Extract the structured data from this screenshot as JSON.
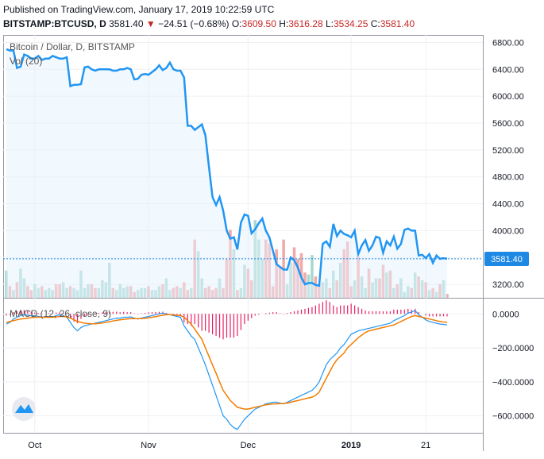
{
  "header": {
    "published": "Published on TradingView.com, January 17, 2019 10:22:59 UTC",
    "symbol": "BITSTAMP:BTCUSD, D",
    "last": "3581.40",
    "change": "−24.51 (−0.68%)",
    "o_label": "O:",
    "o_value": "3609.50",
    "h_label": "H:",
    "h_value": "3616.28",
    "l_label": "L:",
    "l_value": "3534.25",
    "c_label": "C:",
    "c_value": "3581.40",
    "colors": {
      "down": "#c62828",
      "text": "#131722"
    }
  },
  "price_pane": {
    "title": "Bitcoin / Dollar, D, BITSTAMP",
    "vol_label": "Vol (20)",
    "last_price_tag": "3581.40",
    "line_color": "#2196f3",
    "tag_color": "#1e88e5"
  },
  "macd_pane": {
    "title": "MACD (12, 26, close, 9)",
    "macd_color": "#2196f3",
    "signal_color": "#f57c00",
    "hist_color": "#e91e63"
  },
  "chart_data": [
    {
      "type": "line",
      "title": "Bitcoin / Dollar, D, BITSTAMP",
      "x_ticks": [
        "Oct",
        "Nov",
        "Dec",
        "2019",
        "21"
      ],
      "y_ticks": [
        "6800.00",
        "6400.00",
        "6000.00",
        "5600.00",
        "5200.00",
        "4800.00",
        "4400.00",
        "4000.00",
        "3600.00",
        "3200.00"
      ],
      "ylim": [
        3000,
        6900
      ],
      "grid": true,
      "series": [
        {
          "name": "",
          "values": [
            6700,
            6680,
            6680,
            6420,
            6440,
            6620,
            6600,
            6560,
            6560,
            6600,
            6540,
            6560,
            6560,
            6600,
            6580,
            6560,
            6560,
            6580,
            6150,
            6170,
            6170,
            6180,
            6430,
            6440,
            6400,
            6380,
            6400,
            6400,
            6400,
            6400,
            6380,
            6380,
            6400,
            6400,
            6420,
            6400,
            6250,
            6260,
            6320,
            6330,
            6320,
            6360,
            6400,
            6460,
            6390,
            6420,
            6500,
            6400,
            6380,
            6380,
            6280,
            5560,
            5560,
            5500,
            5540,
            5580,
            5420,
            4950,
            4500,
            4380,
            4500,
            4300,
            4000,
            3880,
            3900,
            3720,
            4120,
            4240,
            4220,
            3960,
            4020,
            4110,
            4180,
            4000,
            3900,
            3700,
            3500,
            3460,
            3420,
            3420,
            3600,
            3560,
            3450,
            3300,
            3200,
            3220,
            3220,
            3190,
            3180,
            3800,
            3840,
            3760,
            4100,
            3920,
            4000,
            3950,
            3930,
            3900,
            4000,
            3650,
            3780,
            3860,
            3700,
            3780,
            3910,
            3890,
            3670,
            3840,
            3780,
            3910,
            3730,
            3800,
            4010,
            4030,
            4000,
            4000,
            3630,
            3640,
            3590,
            3650,
            3520,
            3630,
            3580,
            3590,
            3581
          ]
        }
      ],
      "volume": [
        28,
        12,
        8,
        16,
        30,
        20,
        12,
        8,
        14,
        10,
        12,
        8,
        10,
        8,
        14,
        14,
        16,
        10,
        12,
        10,
        8,
        28,
        10,
        14,
        14,
        10,
        10,
        18,
        16,
        36,
        10,
        8,
        14,
        10,
        12,
        12,
        6,
        8,
        10,
        10,
        12,
        8,
        8,
        12,
        14,
        20,
        8,
        10,
        12,
        10,
        16,
        8,
        10,
        60,
        48,
        20,
        10,
        12,
        8,
        10,
        20,
        10,
        40,
        70,
        50,
        8,
        10,
        34,
        30,
        18,
        80,
        60,
        40,
        60,
        56,
        12,
        50,
        32,
        60,
        14,
        36,
        52,
        40,
        46,
        26,
        24,
        44,
        22,
        14,
        16,
        20,
        10,
        28,
        18,
        36,
        50,
        58,
        12,
        18,
        42,
        22,
        10,
        30,
        16,
        20,
        20,
        34,
        26,
        28,
        10,
        14,
        20,
        6,
        12,
        10,
        26,
        22,
        18,
        16,
        8,
        10,
        6,
        14,
        18,
        4
      ],
      "volume_max": 90
    },
    {
      "type": "line",
      "title": "MACD (12, 26, close, 9)",
      "x_ticks": [
        "Oct",
        "Nov",
        "Dec",
        "2019",
        "21"
      ],
      "y_ticks": [
        "0.0000",
        "−200.0000",
        "−400.0000",
        "−600.0000"
      ],
      "ylim": [
        -700,
        90
      ],
      "grid": true,
      "series": [
        {
          "name": "MACD",
          "values": [
            -60,
            -50,
            -30,
            -20,
            -10,
            -5,
            -8,
            -10,
            -12,
            -15,
            -18,
            -20,
            -15,
            -20,
            -10,
            -5,
            -10,
            -20,
            -50,
            -80,
            -100,
            -80,
            -70,
            -65,
            -60,
            -55,
            -50,
            -45,
            -40,
            -35,
            -30,
            -25,
            -25,
            -20,
            -20,
            -18,
            -25,
            -30,
            -25,
            -20,
            -15,
            -10,
            -5,
            0,
            5,
            0,
            -5,
            -10,
            -15,
            -20,
            -70,
            -100,
            -130,
            -150,
            -200,
            -250,
            -300,
            -360,
            -420,
            -480,
            -540,
            -600,
            -620,
            -650,
            -670,
            -680,
            -650,
            -620,
            -600,
            -580,
            -560,
            -550,
            -540,
            -530,
            -525,
            -520,
            -520,
            -525,
            -530,
            -520,
            -510,
            -500,
            -490,
            -480,
            -470,
            -460,
            -450,
            -430,
            -400,
            -350,
            -300,
            -270,
            -250,
            -230,
            -200,
            -180,
            -150,
            -120,
            -110,
            -100,
            -95,
            -90,
            -85,
            -80,
            -75,
            -70,
            -65,
            -60,
            -55,
            -40,
            -30,
            -20,
            -10,
            5,
            10,
            20,
            -5,
            -20,
            -35,
            -45,
            -50,
            -55,
            -60,
            -62,
            -65
          ]
        },
        {
          "name": "Signal",
          "values": [
            -50,
            -45,
            -40,
            -35,
            -30,
            -28,
            -25,
            -22,
            -20,
            -20,
            -20,
            -20,
            -20,
            -20,
            -18,
            -15,
            -15,
            -18,
            -25,
            -35,
            -45,
            -50,
            -55,
            -57,
            -58,
            -58,
            -56,
            -54,
            -50,
            -46,
            -42,
            -38,
            -35,
            -32,
            -30,
            -28,
            -28,
            -28,
            -28,
            -26,
            -24,
            -20,
            -16,
            -12,
            -8,
            -5,
            -5,
            -6,
            -8,
            -10,
            -20,
            -40,
            -60,
            -90,
            -120,
            -150,
            -200,
            -250,
            -300,
            -350,
            -400,
            -450,
            -480,
            -510,
            -530,
            -550,
            -555,
            -560,
            -560,
            -555,
            -550,
            -545,
            -540,
            -535,
            -532,
            -530,
            -530,
            -528,
            -527,
            -525,
            -520,
            -515,
            -510,
            -505,
            -500,
            -495,
            -490,
            -480,
            -460,
            -420,
            -380,
            -340,
            -300,
            -270,
            -250,
            -230,
            -200,
            -180,
            -160,
            -140,
            -125,
            -110,
            -100,
            -95,
            -90,
            -85,
            -80,
            -75,
            -70,
            -65,
            -55,
            -45,
            -35,
            -25,
            -15,
            -10,
            -15,
            -20,
            -25,
            -30,
            -35,
            -40,
            -45,
            -48,
            -50
          ]
        }
      ]
    }
  ]
}
